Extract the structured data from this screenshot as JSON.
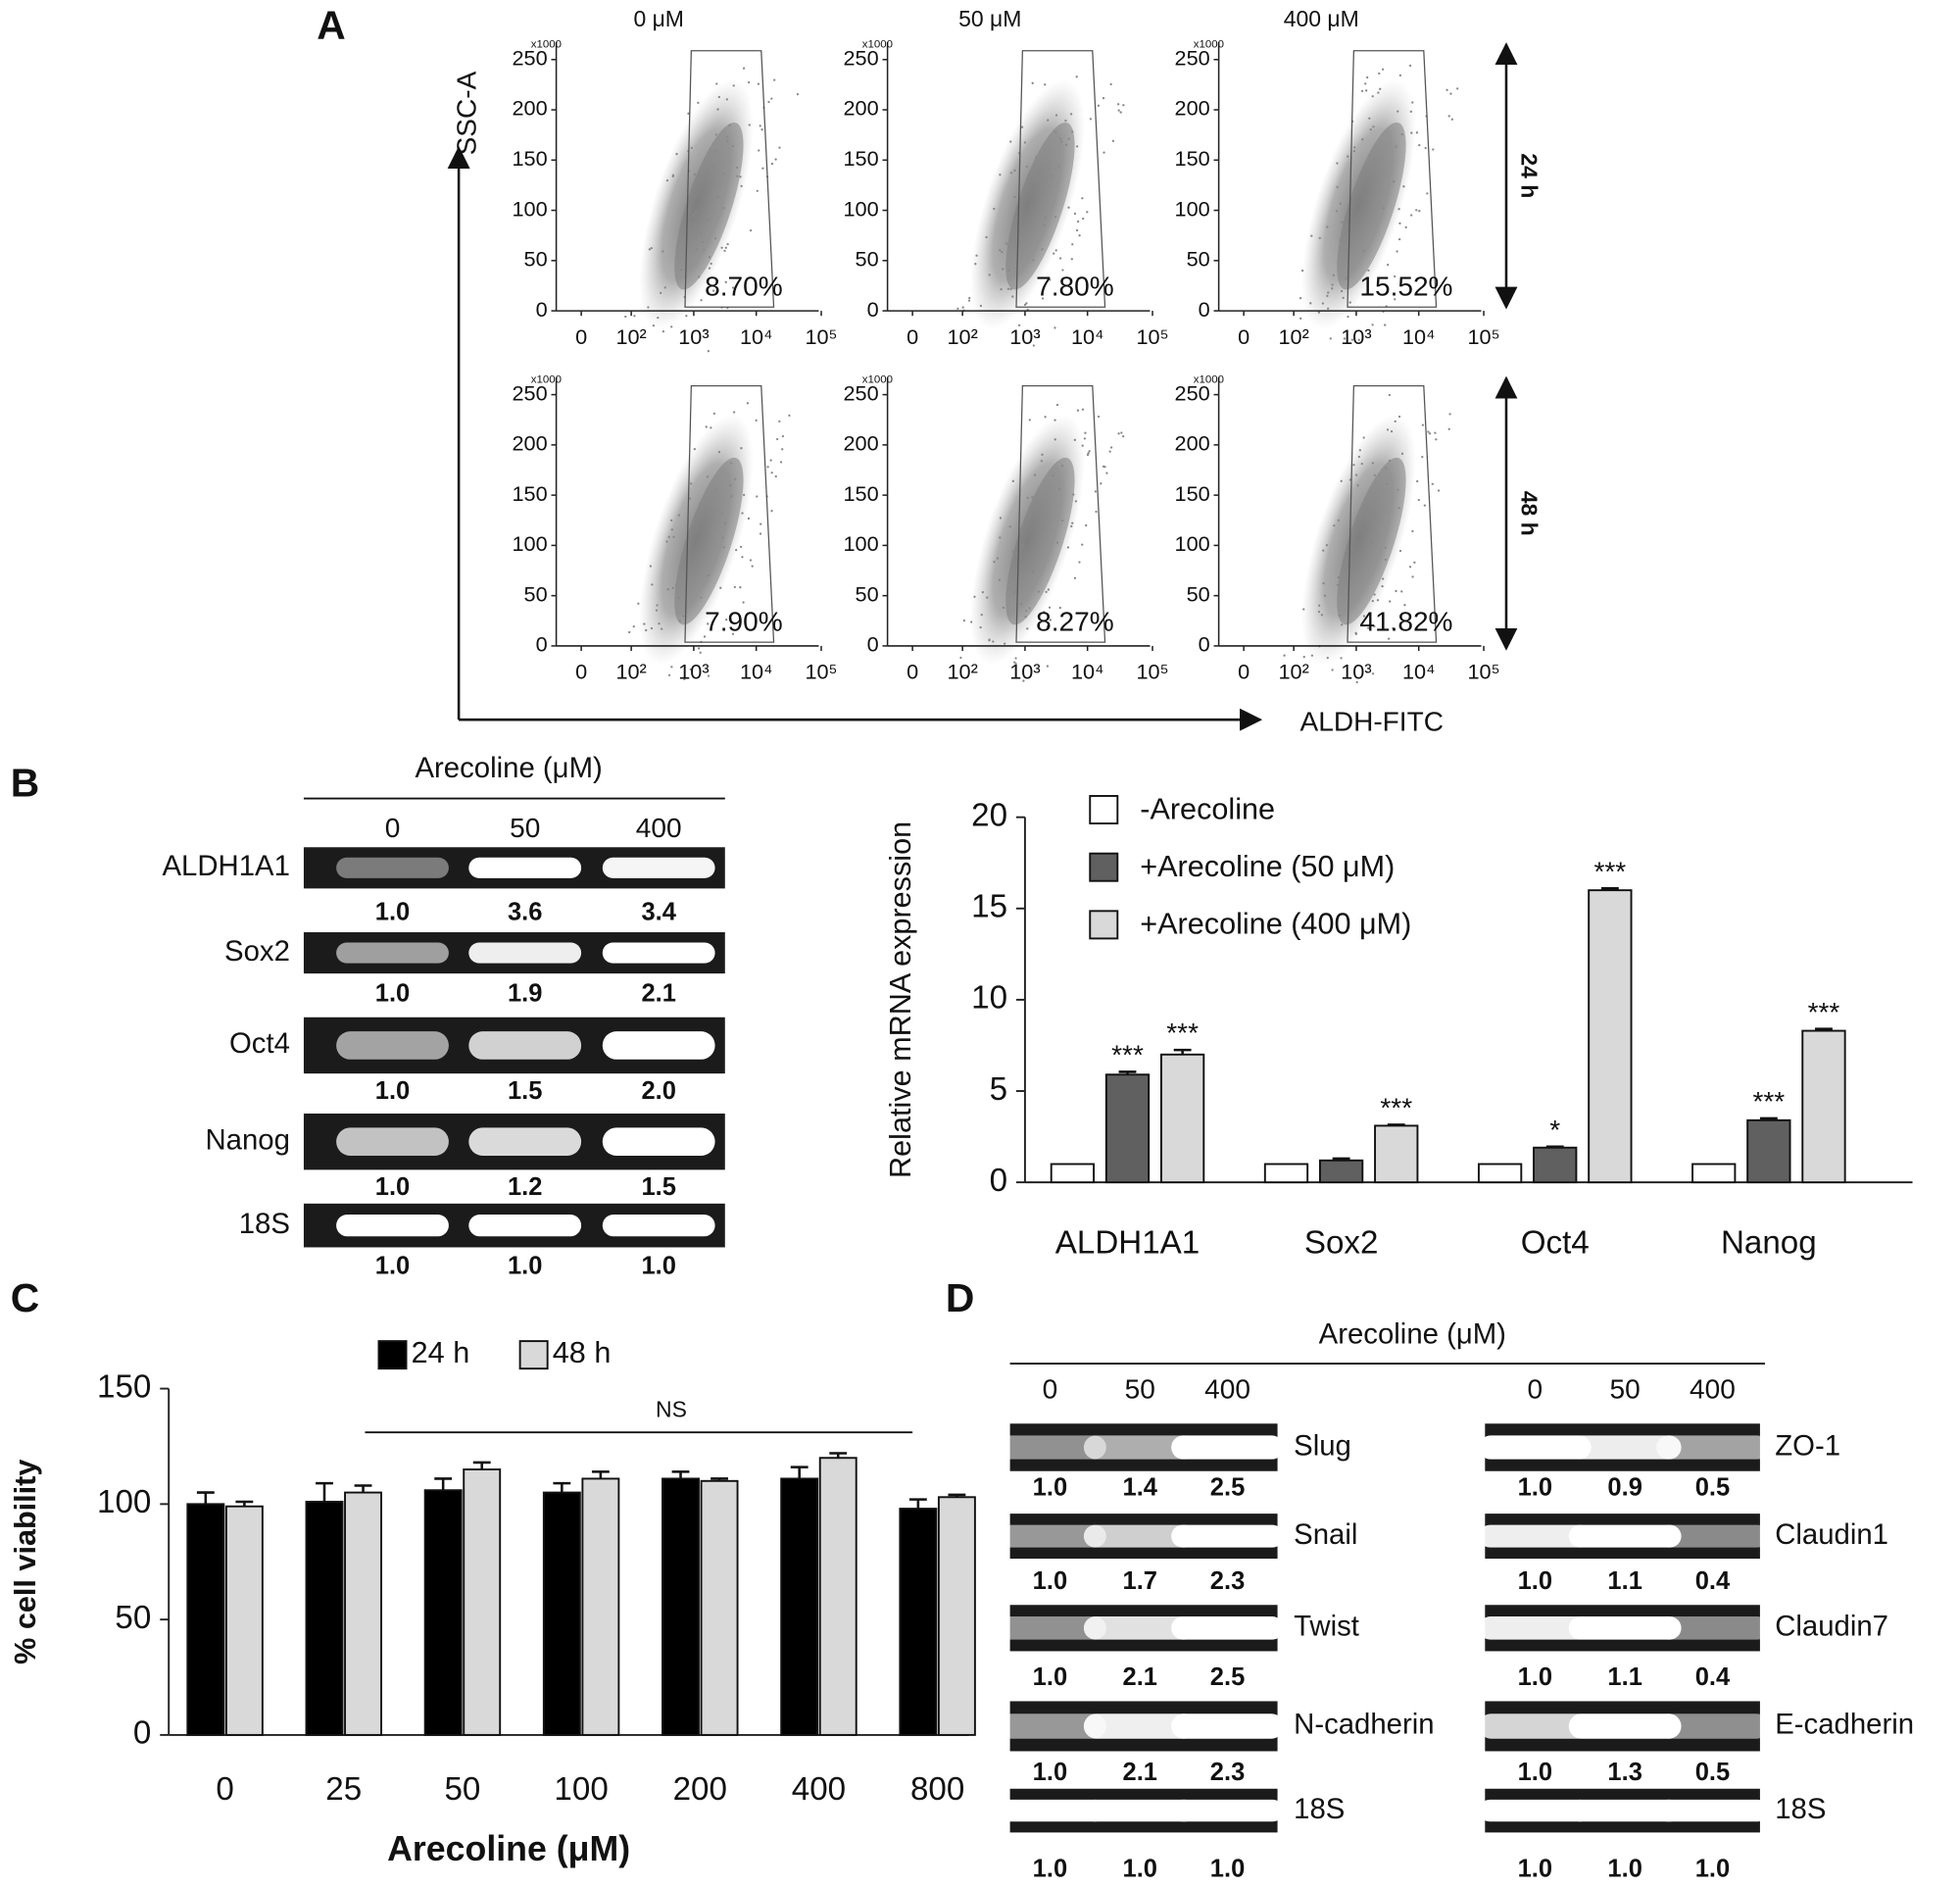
{
  "panel_labels": [
    "A",
    "B",
    "C",
    "D"
  ],
  "flow": {
    "conditions": [
      "0 μM",
      "50 μM",
      "400 μM"
    ],
    "times": [
      "24 h",
      "48 h"
    ],
    "y_axis_label": "SSC-A",
    "x_axis_label": "ALDH-FITC",
    "y_multiplier": "x1000",
    "ylim": [
      0,
      260
    ],
    "yticks": [
      0,
      50,
      100,
      150,
      200,
      250
    ],
    "xticks": [
      "0",
      "10²",
      "10³",
      "10⁴",
      "10⁵"
    ],
    "gates": [
      [
        "8.70%",
        "7.80%",
        "15.52%"
      ],
      [
        "7.90%",
        "8.27%",
        "41.82%"
      ]
    ]
  },
  "gel_b": {
    "title": "Arecoline (μM)",
    "lanes": [
      "0",
      "50",
      "400"
    ],
    "genes": [
      {
        "name": "ALDH1A1",
        "values": [
          1.0,
          3.6,
          3.4
        ],
        "value_labels": [
          "1.0",
          "3.6",
          "3.4"
        ]
      },
      {
        "name": "Sox2",
        "values": [
          1.0,
          1.9,
          2.1
        ],
        "value_labels": [
          "1.0",
          "1.9",
          "2.1"
        ]
      },
      {
        "name": "Oct4",
        "values": [
          1.0,
          1.5,
          2.0
        ],
        "value_labels": [
          "1.0",
          "1.5",
          "2.0"
        ]
      },
      {
        "name": "Nanog",
        "values": [
          1.0,
          1.2,
          1.5
        ],
        "value_labels": [
          "1.0",
          "1.2",
          "1.5"
        ]
      },
      {
        "name": "18S",
        "values": [
          1.0,
          1.0,
          1.0
        ],
        "value_labels": [
          "1.0",
          "1.0",
          "1.0"
        ]
      }
    ]
  },
  "gel_d": {
    "title": "Arecoline (μM)",
    "groups": [
      {
        "lanes": [
          "0",
          "50",
          "400"
        ],
        "genes": [
          {
            "name": "Slug",
            "values": [
              1.0,
              1.4,
              2.5
            ],
            "value_labels": [
              "1.0",
              "1.4",
              "2.5"
            ]
          },
          {
            "name": "Snail",
            "values": [
              1.0,
              1.7,
              2.3
            ],
            "value_labels": [
              "1.0",
              "1.7",
              "2.3"
            ]
          },
          {
            "name": "Twist",
            "values": [
              1.0,
              2.1,
              2.5
            ],
            "value_labels": [
              "1.0",
              "2.1",
              "2.5"
            ]
          },
          {
            "name": "N-cadherin",
            "values": [
              1.0,
              2.1,
              2.3
            ],
            "value_labels": [
              "1.0",
              "2.1",
              "2.3"
            ]
          },
          {
            "name": "18S",
            "values": [
              1.0,
              1.0,
              1.0
            ],
            "value_labels": [
              "1.0",
              "1.0",
              "1.0"
            ]
          }
        ]
      },
      {
        "lanes": [
          "0",
          "50",
          "400"
        ],
        "genes": [
          {
            "name": "ZO-1",
            "values": [
              1.0,
              0.9,
              0.5
            ],
            "value_labels": [
              "1.0",
              "0.9",
              "0.5"
            ]
          },
          {
            "name": "Claudin1",
            "values": [
              1.0,
              1.1,
              0.4
            ],
            "value_labels": [
              "1.0",
              "1.1",
              "0.4"
            ]
          },
          {
            "name": "Claudin7",
            "values": [
              1.0,
              1.1,
              0.4
            ],
            "value_labels": [
              "1.0",
              "1.1",
              "0.4"
            ]
          },
          {
            "name": "E-cadherin",
            "values": [
              1.0,
              1.3,
              0.5
            ],
            "value_labels": [
              "1.0",
              "1.3",
              "0.5"
            ]
          },
          {
            "name": "18S",
            "values": [
              1.0,
              1.0,
              1.0
            ],
            "value_labels": [
              "1.0",
              "1.0",
              "1.0"
            ]
          }
        ]
      }
    ]
  },
  "chart_data": [
    {
      "type": "bar",
      "y_label": "Relative mRNA expression",
      "categories": [
        "ALDH1A1",
        "Sox2",
        "Oct4",
        "Nanog"
      ],
      "series": [
        {
          "name": "-Arecoline",
          "color": "#ffffff",
          "values": [
            1,
            1,
            1,
            1
          ]
        },
        {
          "name": "+Arecoline (50 μM)",
          "color": "#606060",
          "values": [
            5.9,
            1.2,
            1.9,
            3.4
          ],
          "errors": [
            0.15,
            0.1,
            0.05,
            0.1
          ],
          "significance": [
            "***",
            null,
            "*",
            "***"
          ]
        },
        {
          "name": "+Arecoline (400 μM)",
          "color": "#d9d9d9",
          "values": [
            7.0,
            3.1,
            16.0,
            8.3
          ],
          "errors": [
            0.25,
            0.05,
            0.1,
            0.1
          ],
          "significance": [
            "***",
            "***",
            "***",
            "***"
          ]
        }
      ],
      "ylim": [
        0,
        20
      ],
      "yticks": [
        0,
        5,
        10,
        15,
        20
      ]
    },
    {
      "type": "bar",
      "y_label": "% cell viability",
      "x_label": "Arecoline (μM)",
      "annotation": "NS",
      "categories": [
        "0",
        "25",
        "50",
        "100",
        "200",
        "400",
        "800"
      ],
      "series": [
        {
          "name": "24 h",
          "color": "#000000",
          "values": [
            100,
            101,
            106,
            105,
            111,
            111,
            98
          ],
          "errors": [
            5,
            8,
            5,
            4,
            3,
            5,
            4
          ]
        },
        {
          "name": "48 h",
          "color": "#d9d9d9",
          "values": [
            99,
            105,
            115,
            111,
            110,
            120,
            103
          ],
          "errors": [
            2,
            3,
            3,
            3,
            1,
            2,
            1
          ]
        }
      ],
      "ylim": [
        0,
        150
      ],
      "yticks": [
        0,
        50,
        100,
        150
      ]
    }
  ]
}
